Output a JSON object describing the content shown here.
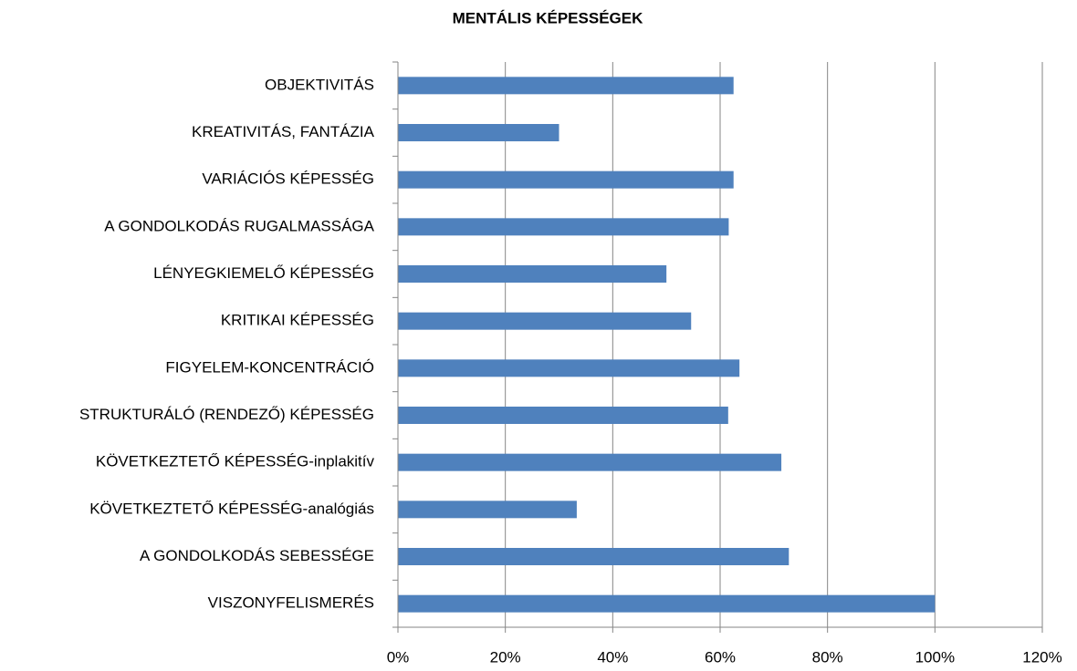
{
  "chart_data": {
    "type": "bar",
    "orientation": "horizontal",
    "title": "MENTÁLIS KÉPESSÉGEK",
    "categories": [
      "OBJEKTIVITÁS",
      "KREATIVITÁS, FANTÁZIA",
      "VARIÁCIÓS KÉPESSÉG",
      "A GONDOLKODÁS RUGALMASSÁGA",
      "LÉNYEGKIEMELŐ KÉPESSÉG",
      "KRITIKAI KÉPESSÉG",
      "FIGYELEM-KONCENTRÁCIÓ",
      "STRUKTURÁLÓ (RENDEZŐ) KÉPESSÉG",
      "KÖVETKEZTETŐ KÉPESSÉG-inplakitív",
      "KÖVETKEZTETŐ KÉPESSÉG-analógiás",
      "A GONDOLKODÁS SEBESSÉGE",
      "VISZONYFELISMERÉS"
    ],
    "values": [
      62.5,
      30,
      62.5,
      61.6,
      50,
      54.6,
      63.6,
      61.5,
      71.4,
      33.3,
      72.8,
      100
    ],
    "color": "#4f81bd",
    "xlim": [
      0,
      120
    ],
    "xticks": [
      {
        "value": 0,
        "label": "0%"
      },
      {
        "value": 20,
        "label": "20%"
      },
      {
        "value": 40,
        "label": "40%"
      },
      {
        "value": 60,
        "label": "60%"
      },
      {
        "value": 80,
        "label": "80%"
      },
      {
        "value": 100,
        "label": "100%"
      },
      {
        "value": 120,
        "label": "120%"
      }
    ],
    "grid": true
  }
}
